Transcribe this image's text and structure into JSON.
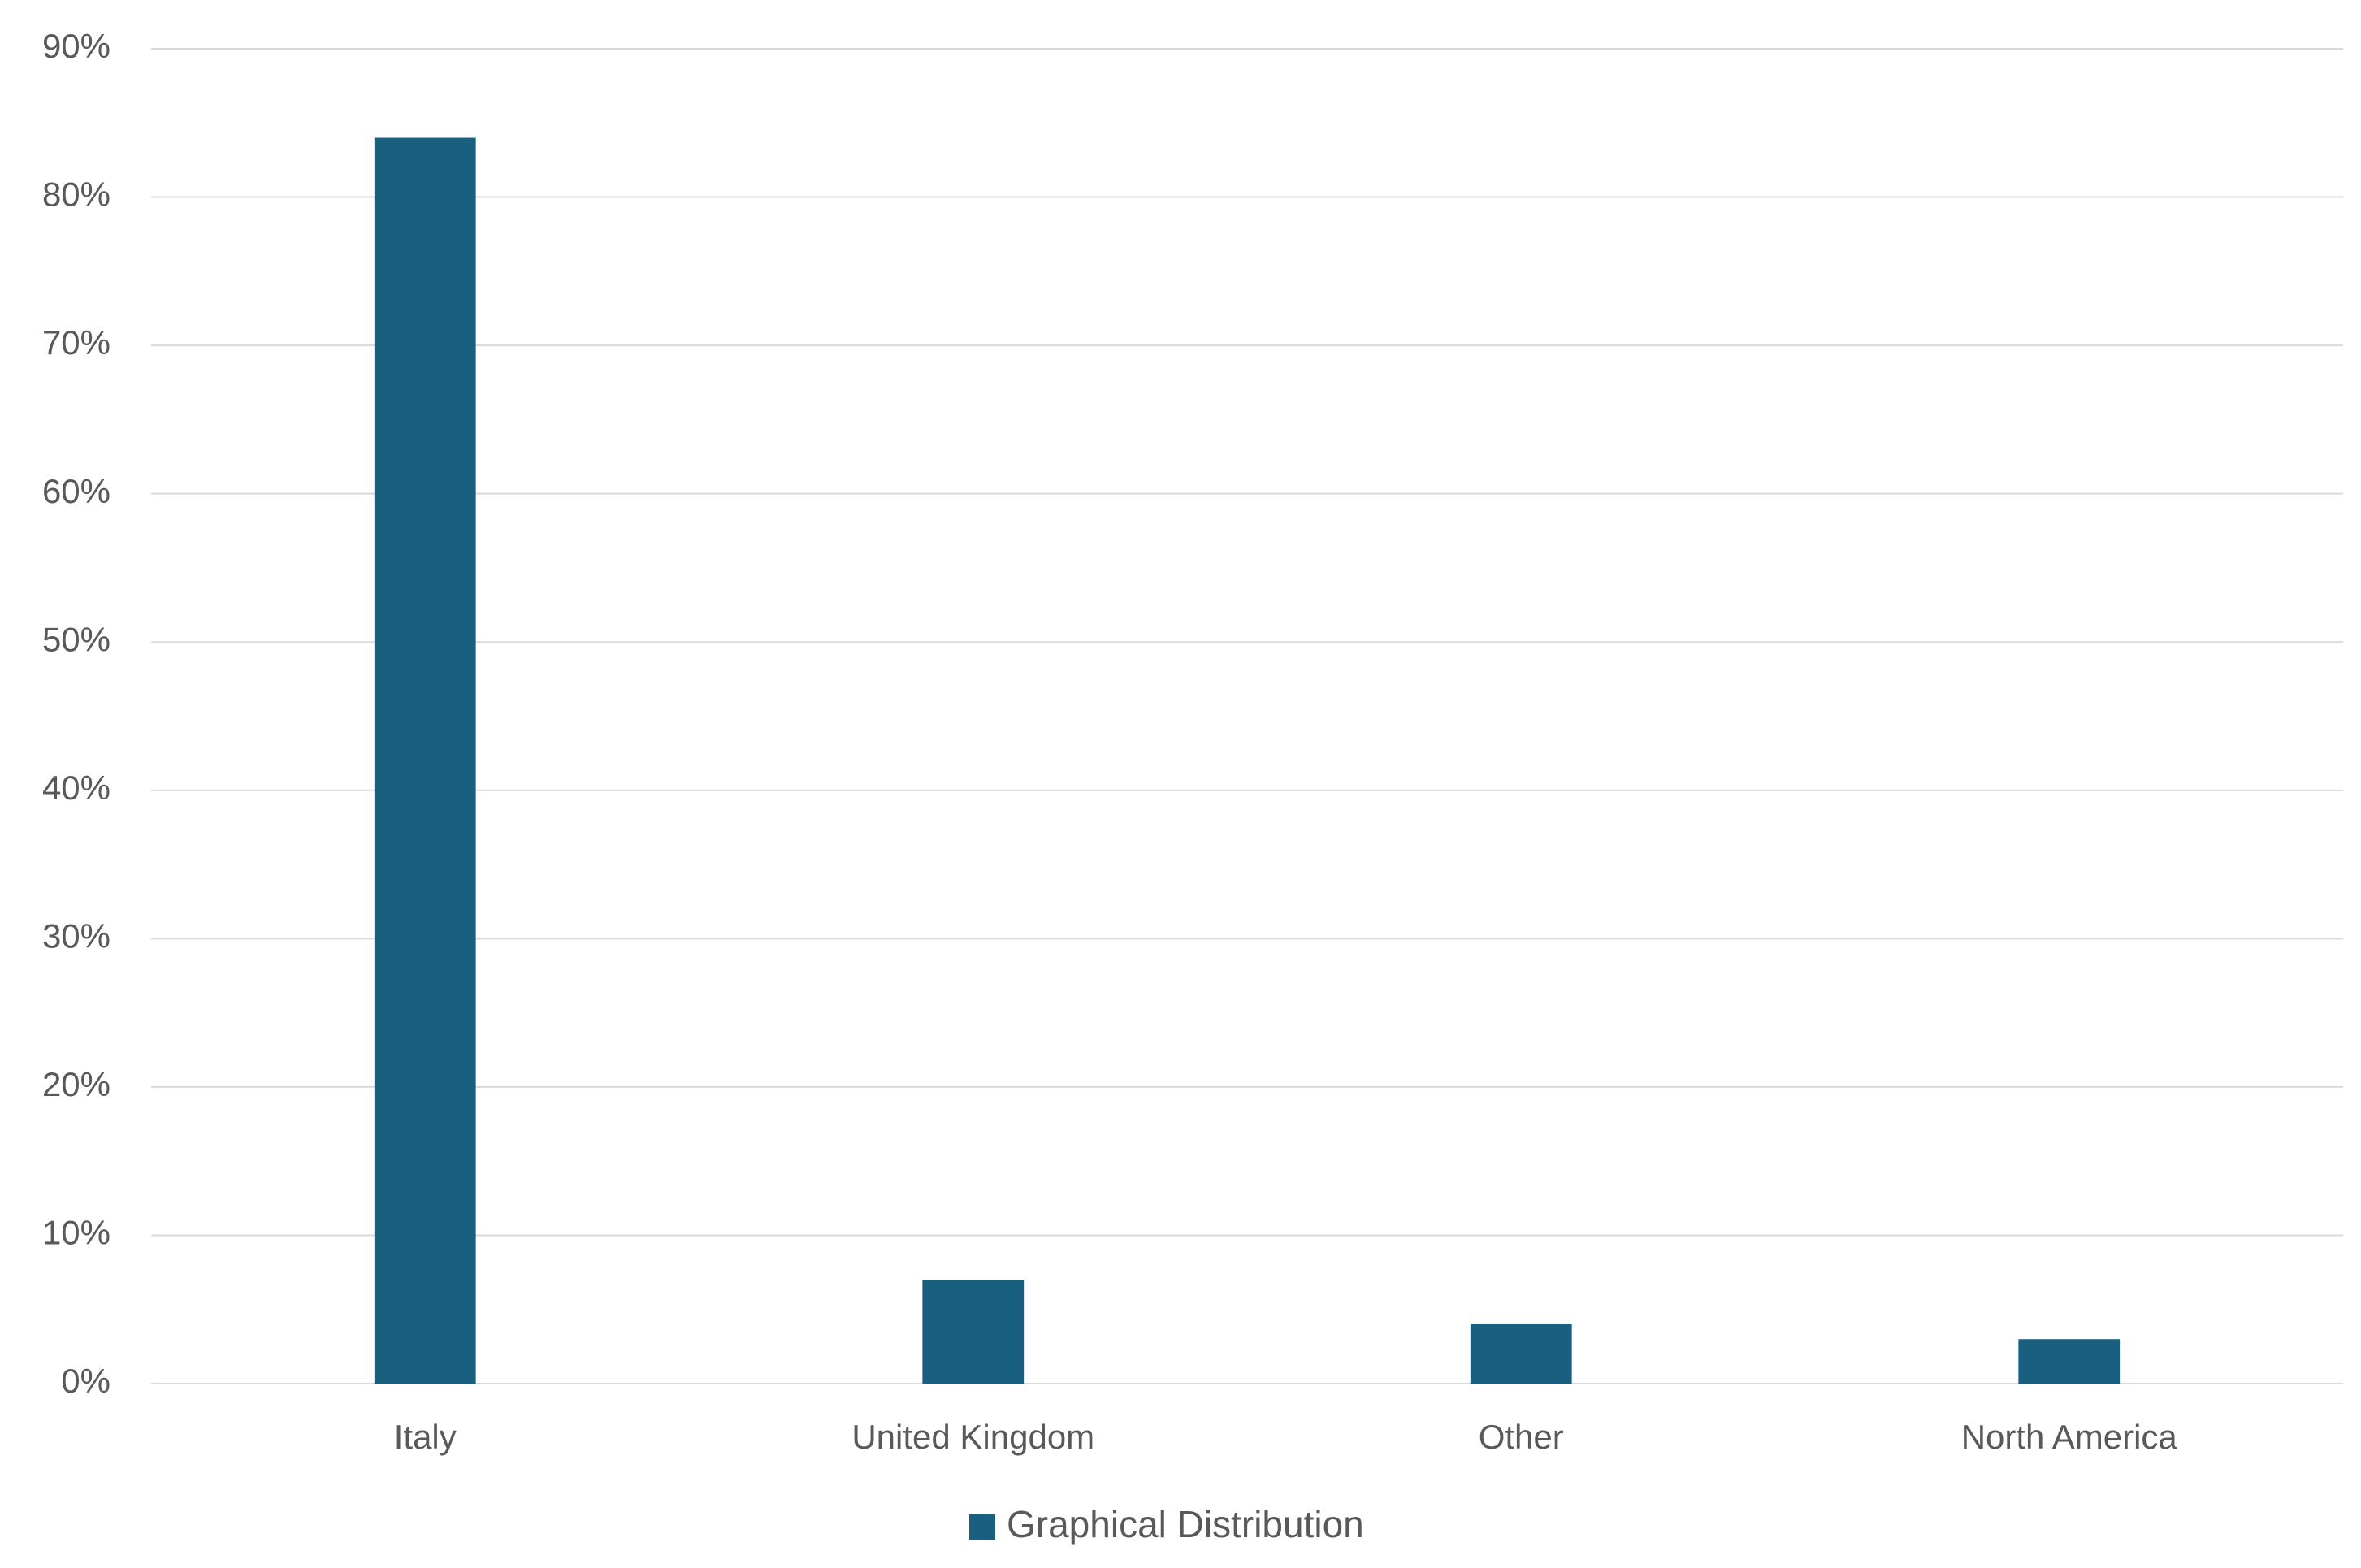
{
  "chart_data": {
    "type": "bar",
    "categories": [
      "Italy",
      "United Kingdom",
      "Other",
      "North America"
    ],
    "series": [
      {
        "name": "Graphical Distribution",
        "color": "#185f80",
        "values": [
          84,
          7,
          4,
          3
        ]
      }
    ],
    "ylim": [
      0,
      90
    ],
    "yticks": [
      {
        "value": 0,
        "label": "0%"
      },
      {
        "value": 10,
        "label": "10%"
      },
      {
        "value": 20,
        "label": "20%"
      },
      {
        "value": 30,
        "label": "30%"
      },
      {
        "value": 40,
        "label": "40%"
      },
      {
        "value": 50,
        "label": "50%"
      },
      {
        "value": 60,
        "label": "60%"
      },
      {
        "value": 70,
        "label": "70%"
      },
      {
        "value": 80,
        "label": "80%"
      },
      {
        "value": 90,
        "label": "90%"
      }
    ],
    "grid": true,
    "legend": "bottom"
  }
}
